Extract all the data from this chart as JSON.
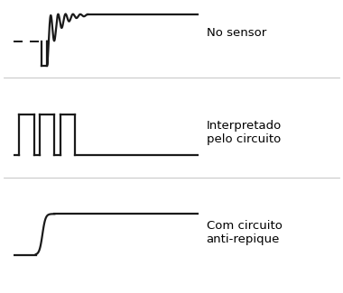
{
  "background_color": "#ffffff",
  "text_color": "#000000",
  "line_color": "#1a1a1a",
  "line_width": 1.6,
  "label1": "No sensor",
  "label2": "Interpretado\npelo circuito",
  "label3": "Com circuito\nanti-repique",
  "fig_width": 3.8,
  "fig_height": 3.25,
  "dpi": 100
}
